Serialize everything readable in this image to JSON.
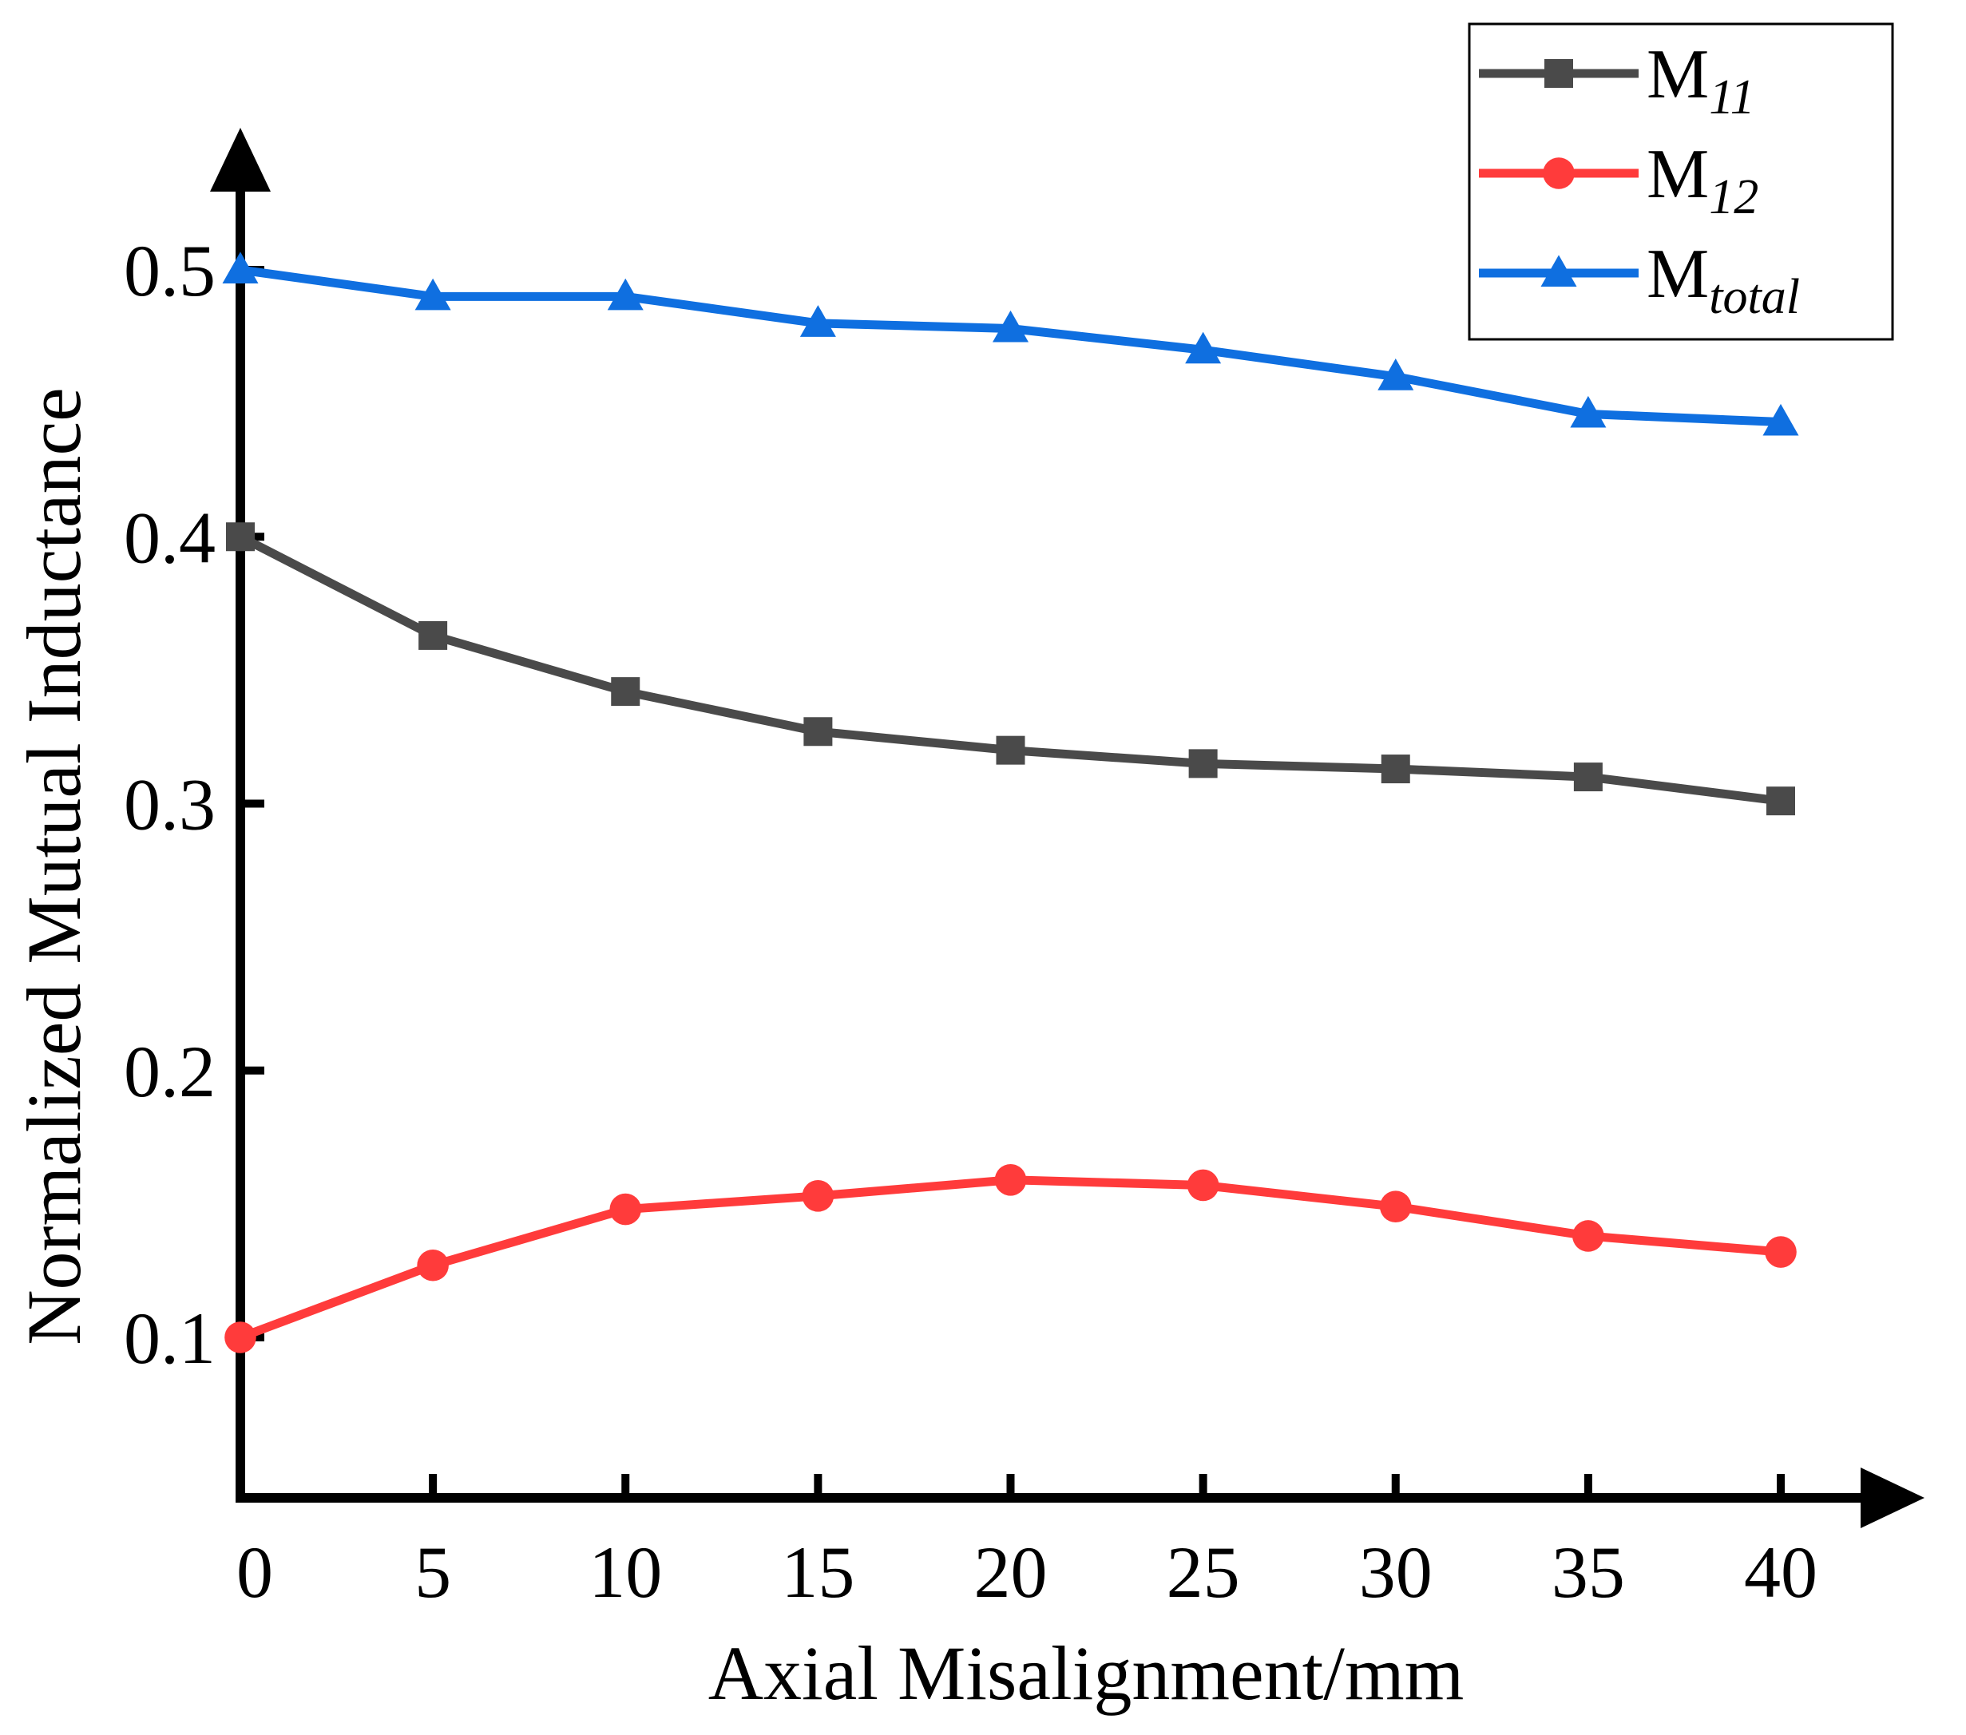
{
  "chart_data": {
    "type": "line",
    "title": "",
    "xlabel": "Axial Misalignment/mm",
    "ylabel": "Normalized Mutual Inductance",
    "x": [
      0,
      5,
      10,
      15,
      20,
      25,
      30,
      35,
      40
    ],
    "x_ticks": [
      "0",
      "5",
      "10",
      "15",
      "20",
      "25",
      "30",
      "35",
      "40"
    ],
    "y_ticks": [
      "0.1",
      "0.2",
      "0.3",
      "0.4",
      "0.5"
    ],
    "xlim": [
      0,
      40
    ],
    "ylim": [
      0.05,
      0.54
    ],
    "grid": false,
    "legend_position": "top-right",
    "series": [
      {
        "name_main": "M",
        "name_sub": "11",
        "color": "#4a4a4a",
        "marker": "square",
        "values": [
          0.4,
          0.363,
          0.342,
          0.327,
          0.32,
          0.315,
          0.313,
          0.31,
          0.301
        ]
      },
      {
        "name_main": "M",
        "name_sub": "12",
        "color": "#ff3b3b",
        "marker": "circle",
        "values": [
          0.1,
          0.127,
          0.148,
          0.153,
          0.159,
          0.157,
          0.149,
          0.138,
          0.132
        ]
      },
      {
        "name_main": "M",
        "name_sub": "total",
        "color": "#0f6fe0",
        "marker": "triangle",
        "values": [
          0.5,
          0.49,
          0.49,
          0.48,
          0.478,
          0.47,
          0.46,
          0.446,
          0.443
        ]
      }
    ]
  }
}
